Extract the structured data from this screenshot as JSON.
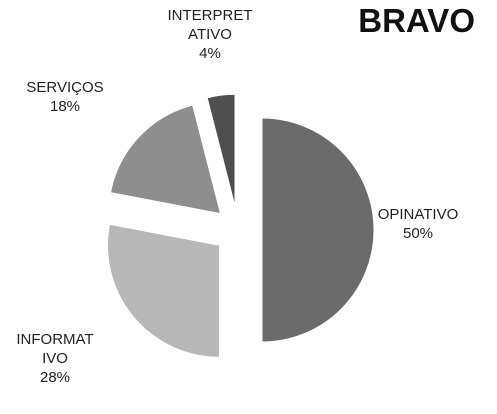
{
  "chart_data": {
    "type": "pie",
    "title": "BRAVO",
    "categories": [
      "OPINATIVO",
      "INFORMATIVO",
      "SERVIÇOS",
      "INTERPRETATIVO"
    ],
    "values": [
      50,
      28,
      18,
      4
    ],
    "value_labels": [
      "50%",
      "28%",
      "18%",
      "4%"
    ],
    "colors": [
      "#6b6b6b",
      "#b8b8b8",
      "#8e8e8e",
      "#4f4f4f"
    ],
    "exploded": true
  }
}
